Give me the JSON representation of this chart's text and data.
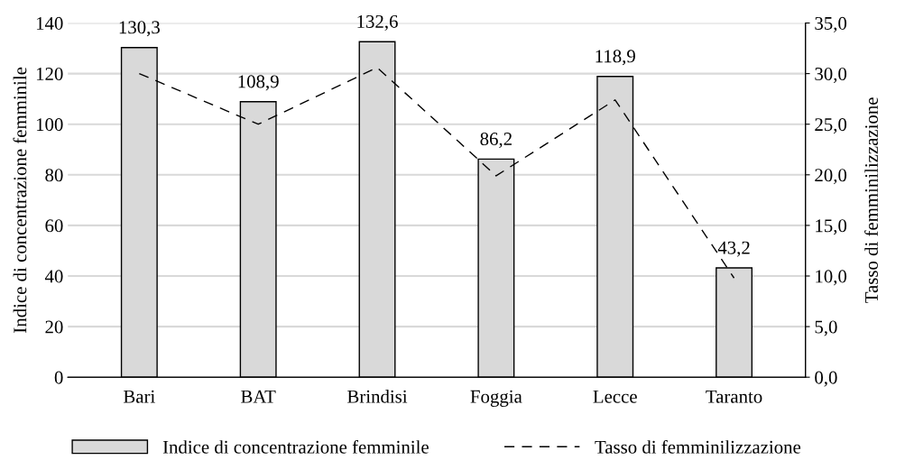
{
  "chart_data": {
    "type": "bar",
    "categories": [
      "Bari",
      "BAT",
      "Brindisi",
      "Foggia",
      "Lecce",
      "Taranto"
    ],
    "series": [
      {
        "name": "Indice di concentrazione femminile",
        "color": "#d9d9d9",
        "values": [
          130.3,
          108.9,
          132.6,
          86.2,
          118.9,
          43.2
        ],
        "value_labels": [
          "130,3",
          "108,9",
          "132,6",
          "86,2",
          "118,9",
          "43,2"
        ]
      },
      {
        "name": "Tasso di femminilizzazione",
        "type": "line",
        "axis": "y2",
        "color": "#000000",
        "line_style": "dashed",
        "values": [
          30.0,
          25.0,
          30.6,
          19.9,
          27.4,
          9.8
        ]
      }
    ],
    "ylabel": "Indice di concentrazione femminile",
    "y2label": "Tasso di femminilizzazione",
    "ylim": [
      0,
      140
    ],
    "yticks": [
      0,
      20,
      40,
      60,
      80,
      100,
      120,
      140
    ],
    "y2lim": [
      0,
      35
    ],
    "y2ticks": [
      {
        "value": 0,
        "label": "0,0"
      },
      {
        "value": 5,
        "label": "5,0"
      },
      {
        "value": 10,
        "label": "10,0"
      },
      {
        "value": 15,
        "label": "15,0"
      },
      {
        "value": 20,
        "label": "20,0"
      },
      {
        "value": 25,
        "label": "25,0"
      },
      {
        "value": 30,
        "label": "30,0"
      },
      {
        "value": 35,
        "label": "35,0"
      }
    ],
    "grid": "y",
    "legend": "bottom"
  }
}
